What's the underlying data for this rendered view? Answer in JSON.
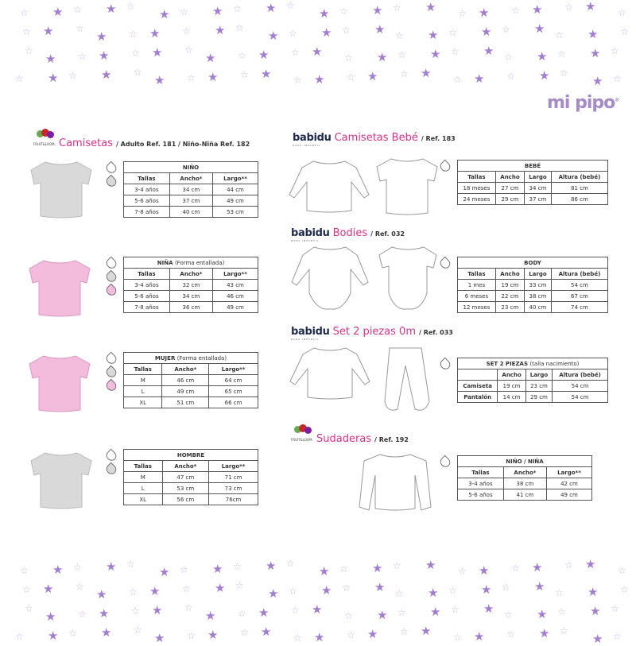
{
  "logo": "mi pipo",
  "colors": {
    "accent": "#d6338a",
    "star": "#a27dd1",
    "shirt_grey": "#d9d9d9",
    "shirt_pink": "#f3bcdc"
  },
  "sections": {
    "camisetas": {
      "brand": "FRUIT OF THE LOOM",
      "title": "Camisetas",
      "ref": "/ Adulto Ref. 181 / Niño-Niña Ref. 182"
    },
    "bebe": {
      "brand": "babidu",
      "title": "Camisetas Bebé",
      "ref": "/ Ref. 183"
    },
    "bodies": {
      "brand": "babidu",
      "title": "Bodies",
      "ref": "/ Ref. 032"
    },
    "set": {
      "brand": "babidu",
      "title": "Set 2 piezas 0m",
      "ref": "/ Ref. 033"
    },
    "sudaderas": {
      "brand": "FRUIT OF THE LOOM",
      "title": "Sudaderas",
      "ref": "/ Ref. 192"
    }
  },
  "tables": {
    "nino": {
      "title": "NIÑO",
      "note": "",
      "headers": [
        "Tallas",
        "Ancho*",
        "Largo**"
      ],
      "rows": [
        [
          "3-4 años",
          "34 cm",
          "44 cm"
        ],
        [
          "5-6 años",
          "37 cm",
          "49 cm"
        ],
        [
          "7-8 años",
          "40 cm",
          "53 cm"
        ]
      ],
      "colors": [
        "white",
        "grey"
      ]
    },
    "nina": {
      "title": "NIÑA",
      "note": "(Forma entallada)",
      "headers": [
        "Tallas",
        "Ancho*",
        "Largo**"
      ],
      "rows": [
        [
          "3-4 años",
          "32 cm",
          "43 cm"
        ],
        [
          "5-6 años",
          "34 cm",
          "46 cm"
        ],
        [
          "7-8 años",
          "36 cm",
          "49 cm"
        ]
      ],
      "colors": [
        "white",
        "grey",
        "pink"
      ]
    },
    "mujer": {
      "title": "MUJER",
      "note": "(Forma entallada)",
      "headers": [
        "Tallas",
        "Ancho*",
        "Largo**"
      ],
      "rows": [
        [
          "M",
          "46 cm",
          "64 cm"
        ],
        [
          "L",
          "49 cm",
          "65 cm"
        ],
        [
          "XL",
          "51 cm",
          "66 cm"
        ]
      ],
      "colors": [
        "white",
        "grey",
        "pink"
      ]
    },
    "hombre": {
      "title": "HOMBRE",
      "note": "",
      "headers": [
        "Tallas",
        "Ancho*",
        "Largo**"
      ],
      "rows": [
        [
          "M",
          "47 cm",
          "71 cm"
        ],
        [
          "L",
          "53 cm",
          "73 cm"
        ],
        [
          "XL",
          "56 cm",
          "76cm"
        ]
      ],
      "colors": [
        "white",
        "grey"
      ]
    },
    "bebe": {
      "title": "BEBÉ",
      "note": "",
      "headers": [
        "Tallas",
        "Ancho",
        "Largo",
        "Altura (bebé)"
      ],
      "rows": [
        [
          "18 meses",
          "27 cm",
          "34 cm",
          "81 cm"
        ],
        [
          "24 meses",
          "29 cm",
          "37 cm",
          "86 cm"
        ]
      ],
      "colors": [
        "white"
      ]
    },
    "body": {
      "title": "BODY",
      "note": "",
      "headers": [
        "Tallas",
        "Ancho",
        "Largo",
        "Altura (bebé)"
      ],
      "rows": [
        [
          "1 mes",
          "19 cm",
          "33 cm",
          "54 cm"
        ],
        [
          "6 meses",
          "22 cm",
          "38 cm",
          "67 cm"
        ],
        [
          "12 meses",
          "23 cm",
          "40 cm",
          "74 cm"
        ]
      ],
      "colors": [
        "white"
      ]
    },
    "set": {
      "title": "SET 2 PIEZAS",
      "note": "(talla nacimiento)",
      "headers": [
        "",
        "Ancho",
        "Largo",
        "Altura (bebé)"
      ],
      "rows": [
        [
          "Camiseta",
          "19 cm",
          "23 cm",
          "54 cm"
        ],
        [
          "Pantalón",
          "14 cm",
          "29 cm",
          "54 cm"
        ]
      ],
      "colors": [
        "white"
      ]
    },
    "sudaderas": {
      "title": "NIÑO / NIÑA",
      "note": "",
      "headers": [
        "Tallas",
        "Ancho*",
        "Largo**"
      ],
      "rows": [
        [
          "3-4 años",
          "38 cm",
          "42 cm"
        ],
        [
          "5-6 años",
          "41 cm",
          "49 cm"
        ]
      ],
      "colors": [
        "white"
      ]
    }
  }
}
